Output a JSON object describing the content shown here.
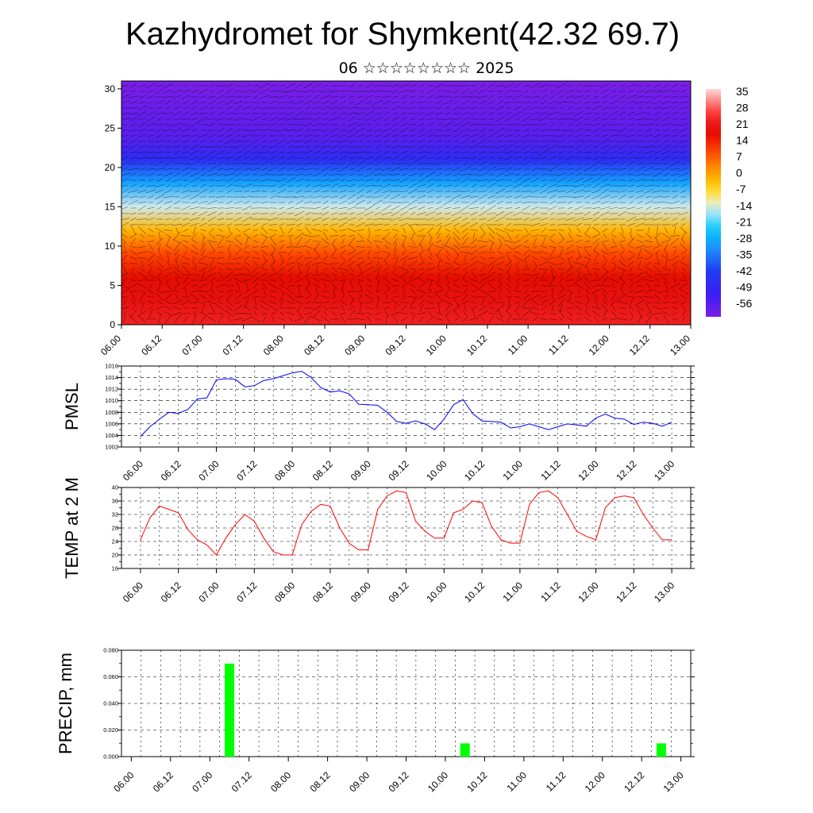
{
  "title": "Kazhydromet for Shymkent(42.32 69.7)",
  "subtitle": "06 ☆☆☆☆☆☆☆☆ 2025",
  "colors": {
    "pmsl_line": "#0000ff",
    "temp_line": "#ff0000",
    "precip_bar": "#00ff00",
    "grid": "#000000"
  },
  "chart_data": [
    {
      "type": "heatmap",
      "name": "cross-section",
      "x_tick_labels": [
        "06.00",
        "06.12",
        "07.00",
        "07.12",
        "08.00",
        "08.12",
        "09.00",
        "09.12",
        "10.00",
        "10.12",
        "11.00",
        "11.12",
        "12.00",
        "12.12",
        "13.00"
      ],
      "y_ticks": [
        0,
        5,
        10,
        15,
        20,
        25,
        30
      ],
      "ylim": [
        0,
        31
      ],
      "colorbar_labels": [
        "35",
        "28",
        "21",
        "14",
        "7",
        "0",
        "-7",
        "-14",
        "-21",
        "-28",
        "-35",
        "-42",
        "-49",
        "-56"
      ],
      "colorbar_range": [
        -63,
        38
      ],
      "profile_levels": [
        0,
        3,
        6,
        9,
        12,
        15,
        18,
        21,
        24,
        27,
        31
      ],
      "profile_values": [
        24,
        22,
        18,
        10,
        -2,
        -15,
        -30,
        -48,
        -58,
        -60,
        -63
      ],
      "has_wind_vectors": true
    },
    {
      "type": "line",
      "ylabel": "PMSL",
      "ylim": [
        1002,
        1016
      ],
      "y_ticks": [
        1002,
        1004,
        1006,
        1008,
        1010,
        1012,
        1014,
        1016
      ],
      "x_tick_labels": [
        "06.00",
        "06.12",
        "07.00",
        "07.12",
        "08.00",
        "08.12",
        "09.00",
        "09.12",
        "10.00",
        "10.12",
        "11.00",
        "11.12",
        "12.00",
        "12.12",
        "13.00"
      ],
      "x": [
        0,
        3,
        6,
        9,
        12,
        15,
        18,
        21,
        24,
        27,
        30,
        33,
        36,
        39,
        42,
        45,
        48,
        51,
        54,
        57,
        60,
        63,
        66,
        69,
        72,
        75,
        78,
        81,
        84,
        87,
        90,
        93,
        96,
        99,
        102,
        105,
        108,
        111,
        114,
        117,
        120,
        123,
        126,
        129,
        132,
        135,
        138,
        141,
        144,
        147,
        150,
        153,
        156,
        159,
        162,
        165,
        168
      ],
      "values": [
        1003.8,
        1005.5,
        1006.8,
        1008.0,
        1007.8,
        1008.5,
        1010.3,
        1010.5,
        1013.6,
        1013.8,
        1013.7,
        1012.4,
        1012.6,
        1013.5,
        1013.8,
        1014.3,
        1014.8,
        1015.1,
        1014.0,
        1012.3,
        1011.5,
        1011.7,
        1011.2,
        1009.4,
        1009.3,
        1009.2,
        1008.0,
        1006.4,
        1006.1,
        1006.5,
        1006.0,
        1005.0,
        1006.8,
        1009.3,
        1010.2,
        1007.8,
        1006.5,
        1006.4,
        1006.3,
        1005.3,
        1005.5,
        1006.0,
        1005.5,
        1005.0,
        1005.5,
        1006.0,
        1005.8,
        1005.6,
        1007.0,
        1007.7,
        1007.0,
        1006.8,
        1005.9,
        1006.3,
        1006.1,
        1005.6,
        1006.3
      ]
    },
    {
      "type": "line",
      "ylabel": "TEMP at 2 M",
      "ylim": [
        16,
        40
      ],
      "y_ticks": [
        16,
        20,
        24,
        28,
        32,
        36,
        40
      ],
      "x_tick_labels": [
        "06.00",
        "06.12",
        "07.00",
        "07.12",
        "08.00",
        "08.12",
        "09.00",
        "09.12",
        "10.00",
        "10.12",
        "11.00",
        "11.12",
        "12.00",
        "12.12",
        "13.00"
      ],
      "x": [
        0,
        3,
        6,
        9,
        12,
        15,
        18,
        21,
        24,
        27,
        30,
        33,
        36,
        39,
        42,
        45,
        48,
        51,
        54,
        57,
        60,
        63,
        66,
        69,
        72,
        75,
        78,
        81,
        84,
        87,
        90,
        93,
        96,
        99,
        102,
        105,
        108,
        111,
        114,
        117,
        120,
        123,
        126,
        129,
        132,
        135,
        138,
        141,
        144,
        147,
        150,
        153,
        156,
        159,
        162,
        165,
        168
      ],
      "values": [
        24.5,
        31.0,
        34.5,
        33.5,
        32.5,
        27.5,
        24.5,
        23.0,
        20.0,
        25.0,
        29.0,
        32.0,
        30.0,
        25.0,
        21.0,
        20.0,
        20.0,
        29.0,
        33.0,
        35.0,
        34.5,
        28.0,
        23.5,
        21.5,
        21.5,
        33.5,
        37.5,
        39.0,
        38.5,
        30.0,
        27.0,
        25.0,
        25.0,
        32.5,
        33.5,
        36.0,
        35.5,
        28.5,
        24.5,
        23.5,
        23.5,
        35.0,
        38.5,
        39.0,
        37.0,
        32.0,
        27.0,
        25.5,
        24.5,
        34.0,
        37.0,
        37.5,
        37.0,
        32.0,
        28.0,
        24.5,
        24.5
      ]
    },
    {
      "type": "bar",
      "ylabel": "PRECIP, mm",
      "ylim": [
        0,
        0.08
      ],
      "y_tick_labels": [
        "0.000",
        "0.020",
        "0.040",
        "0.060",
        "0.080"
      ],
      "x_tick_labels": [
        "06.00",
        "06.12",
        "07.00",
        "07.12",
        "08.00",
        "08.12",
        "09.00",
        "09.12",
        "10.00",
        "10.12",
        "11.00",
        "11.12",
        "12.00",
        "12.12",
        "13.00"
      ],
      "x": [
        30,
        102,
        162
      ],
      "values": [
        0.07,
        0.01,
        0.01
      ]
    }
  ]
}
